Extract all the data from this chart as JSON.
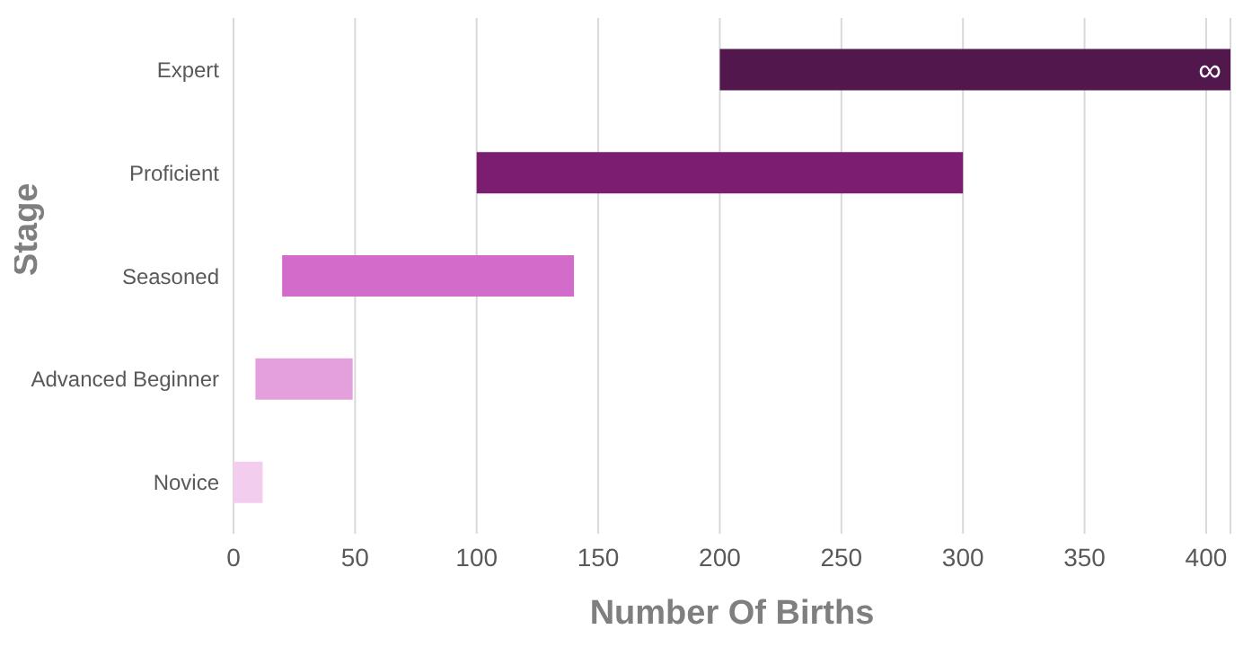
{
  "chart_data": {
    "type": "bar",
    "orientation": "horizontal",
    "xlabel": "Number Of Births",
    "ylabel": "Stage",
    "categories": [
      "Expert",
      "Proficient",
      "Seasoned",
      "Advanced Beginner",
      "Novice"
    ],
    "base": [
      200,
      100,
      20,
      9,
      0
    ],
    "values": [
      210,
      200,
      120,
      40,
      12
    ],
    "colors": [
      "#52174d",
      "#7b1d70",
      "#d26bca",
      "#e49fdd",
      "#f2cdee"
    ],
    "value_labels": [
      "∞",
      null,
      null,
      null,
      null
    ],
    "xlim": [
      0,
      410
    ],
    "xticks": [
      0,
      50,
      100,
      150,
      200,
      250,
      300,
      350,
      400
    ],
    "grid": "x",
    "legend": false
  }
}
